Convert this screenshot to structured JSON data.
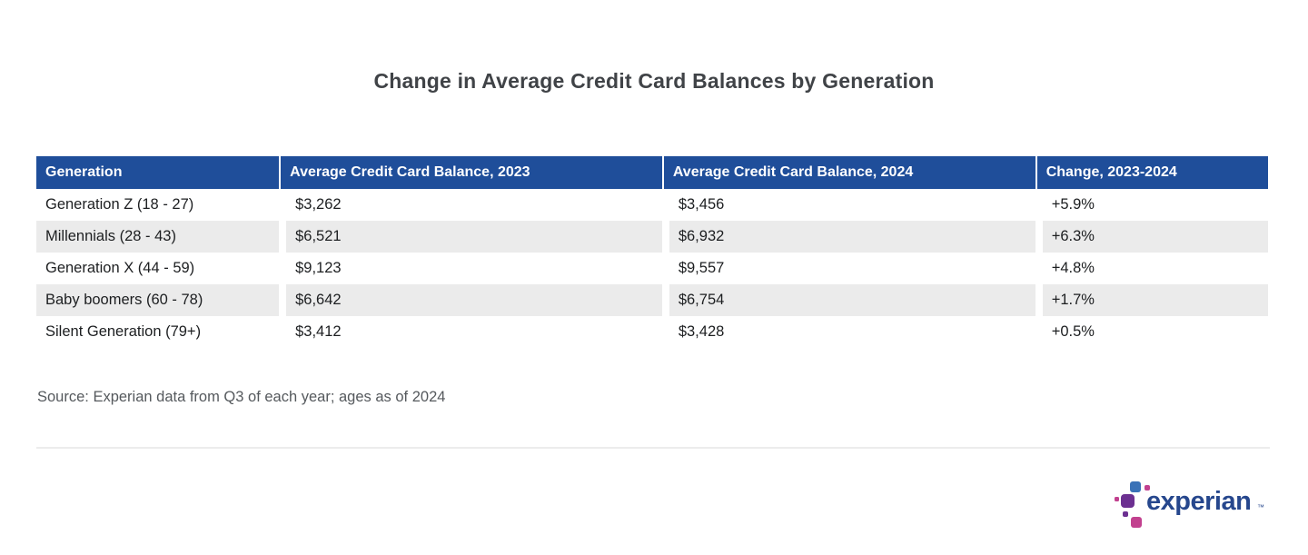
{
  "title": "Change in Average Credit Card Balances by Generation",
  "table": {
    "columns": [
      "Generation",
      "Average Credit Card Balance, 2023",
      "Average Credit Card Balance, 2024",
      "Change, 2023-2024"
    ],
    "rows": [
      [
        "Generation Z (18 - 27)",
        "$3,262",
        "$3,456",
        "+5.9%"
      ],
      [
        "Millennials (28 - 43)",
        "$6,521",
        "$6,932",
        "+6.3%"
      ],
      [
        "Generation X (44 - 59)",
        "$9,123",
        "$9,557",
        "+4.8%"
      ],
      [
        "Baby boomers (60 - 78)",
        "$6,642",
        "$6,754",
        "+1.7%"
      ],
      [
        "Silent Generation (79+)",
        "$3,412",
        "$3,428",
        "+0.5%"
      ]
    ]
  },
  "source_note": "Source: Experian data from Q3 of each year; ages as of 2024",
  "logo": {
    "wordmark": "experian",
    "trademark": "™"
  },
  "colors": {
    "header_bg": "#1F4E9A",
    "header_text": "#FFFFFF",
    "stripe": "#EBEBEB",
    "title_text": "#404347",
    "body_text": "#1D1F21",
    "source_text": "#55595D",
    "wordmark_blue": "#26478D",
    "logo_blue": "#3A72B7",
    "logo_purple": "#6C3091",
    "logo_magenta": "#C2418F"
  },
  "chart_data": {
    "type": "table",
    "title": "Change in Average Credit Card Balances by Generation",
    "columns": [
      "Generation",
      "Average Credit Card Balance, 2023",
      "Average Credit Card Balance, 2024",
      "Change, 2023-2024"
    ],
    "rows": [
      {
        "generation": "Generation Z (18 - 27)",
        "balance_2023": 3262,
        "balance_2024": 3456,
        "change_pct": 5.9
      },
      {
        "generation": "Millennials (28 - 43)",
        "balance_2023": 6521,
        "balance_2024": 6932,
        "change_pct": 6.3
      },
      {
        "generation": "Generation X (44 - 59)",
        "balance_2023": 9123,
        "balance_2024": 9557,
        "change_pct": 4.8
      },
      {
        "generation": "Baby boomers (60 - 78)",
        "balance_2023": 6642,
        "balance_2024": 6754,
        "change_pct": 1.7
      },
      {
        "generation": "Silent Generation (79+)",
        "balance_2023": 3412,
        "balance_2024": 3428,
        "change_pct": 0.5
      }
    ],
    "source": "Source: Experian data from Q3 of each year; ages as of 2024"
  }
}
